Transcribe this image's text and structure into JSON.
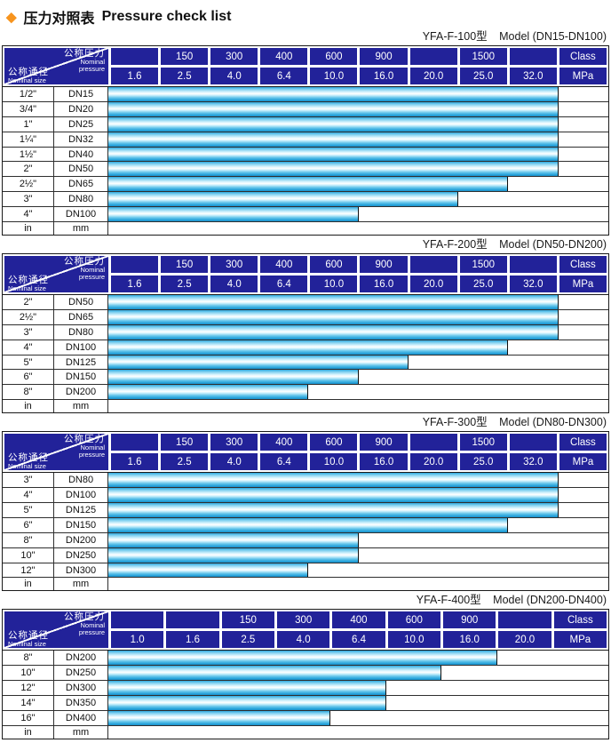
{
  "title": {
    "zh": "压力对照表",
    "en": "Pressure check list"
  },
  "corner": {
    "pressure_zh": "公称压力",
    "pressure_en_1": "Nominal",
    "pressure_en_2": "pressure",
    "size_zh": "公称通径",
    "size_en": "Nominal size"
  },
  "colors": {
    "header_navy": "#222299",
    "bar_cyan": "#29abe2",
    "accent_orange": "#f7941e",
    "border_dark": "#1a1a1a"
  },
  "tables": [
    {
      "model": "YFA-F-100型",
      "range": "Model (DN15-DN100)",
      "class_labels": [
        "",
        "150",
        "300",
        "400",
        "600",
        "900",
        "",
        "1500",
        "",
        "Class"
      ],
      "mpa_labels": [
        "1.6",
        "2.5",
        "4.0",
        "6.4",
        "10.0",
        "16.0",
        "20.0",
        "25.0",
        "32.0",
        "MPa"
      ],
      "rows": [
        {
          "size": "1/2\"",
          "dn": "DN15",
          "bar_cols": 9,
          "max_mpa": "32.0"
        },
        {
          "size": "3/4\"",
          "dn": "DN20",
          "bar_cols": 9,
          "max_mpa": "32.0"
        },
        {
          "size": "1\"",
          "dn": "DN25",
          "bar_cols": 9,
          "max_mpa": "32.0"
        },
        {
          "size": "1¼\"",
          "dn": "DN32",
          "bar_cols": 9,
          "max_mpa": "32.0"
        },
        {
          "size": "1½\"",
          "dn": "DN40",
          "bar_cols": 9,
          "max_mpa": "32.0"
        },
        {
          "size": "2\"",
          "dn": "DN50",
          "bar_cols": 9,
          "max_mpa": "32.0"
        },
        {
          "size": "2½\"",
          "dn": "DN65",
          "bar_cols": 8,
          "max_mpa": "25.0"
        },
        {
          "size": "3\"",
          "dn": "DN80",
          "bar_cols": 7,
          "max_mpa": "20.0"
        },
        {
          "size": "4\"",
          "dn": "DN100",
          "bar_cols": 5,
          "max_mpa": "10.0"
        }
      ],
      "unit_row": {
        "size": "in",
        "dn": "mm"
      }
    },
    {
      "model": "YFA-F-200型",
      "range": "Model (DN50-DN200)",
      "class_labels": [
        "",
        "150",
        "300",
        "400",
        "600",
        "900",
        "",
        "1500",
        "",
        "Class"
      ],
      "mpa_labels": [
        "1.6",
        "2.5",
        "4.0",
        "6.4",
        "10.0",
        "16.0",
        "20.0",
        "25.0",
        "32.0",
        "MPa"
      ],
      "rows": [
        {
          "size": "2\"",
          "dn": "DN50",
          "bar_cols": 9,
          "max_mpa": "32.0"
        },
        {
          "size": "2½\"",
          "dn": "DN65",
          "bar_cols": 9,
          "max_mpa": "32.0"
        },
        {
          "size": "3\"",
          "dn": "DN80",
          "bar_cols": 9,
          "max_mpa": "32.0"
        },
        {
          "size": "4\"",
          "dn": "DN100",
          "bar_cols": 8,
          "max_mpa": "25.0"
        },
        {
          "size": "5\"",
          "dn": "DN125",
          "bar_cols": 6,
          "max_mpa": "16.0"
        },
        {
          "size": "6\"",
          "dn": "DN150",
          "bar_cols": 5,
          "max_mpa": "10.0"
        },
        {
          "size": "8\"",
          "dn": "DN200",
          "bar_cols": 4,
          "max_mpa": "6.4"
        }
      ],
      "unit_row": {
        "size": "in",
        "dn": "mm"
      }
    },
    {
      "model": "YFA-F-300型",
      "range": "Model (DN80-DN300)",
      "class_labels": [
        "",
        "150",
        "300",
        "400",
        "600",
        "900",
        "",
        "1500",
        "",
        "Class"
      ],
      "mpa_labels": [
        "1.6",
        "2.5",
        "4.0",
        "6.4",
        "10.0",
        "16.0",
        "20.0",
        "25.0",
        "32.0",
        "MPa"
      ],
      "rows": [
        {
          "size": "3\"",
          "dn": "DN80",
          "bar_cols": 9,
          "max_mpa": "32.0"
        },
        {
          "size": "4\"",
          "dn": "DN100",
          "bar_cols": 9,
          "max_mpa": "32.0"
        },
        {
          "size": "5\"",
          "dn": "DN125",
          "bar_cols": 9,
          "max_mpa": "32.0"
        },
        {
          "size": "6\"",
          "dn": "DN150",
          "bar_cols": 8,
          "max_mpa": "25.0"
        },
        {
          "size": "8\"",
          "dn": "DN200",
          "bar_cols": 5,
          "max_mpa": "10.0"
        },
        {
          "size": "10\"",
          "dn": "DN250",
          "bar_cols": 5,
          "max_mpa": "10.0"
        },
        {
          "size": "12\"",
          "dn": "DN300",
          "bar_cols": 4,
          "max_mpa": "6.4"
        }
      ],
      "unit_row": {
        "size": "in",
        "dn": "mm"
      }
    },
    {
      "model": "YFA-F-400型",
      "range": "Model (DN200-DN400)",
      "class_labels": [
        "",
        "",
        "150",
        "300",
        "400",
        "600",
        "900",
        "",
        "Class"
      ],
      "mpa_labels": [
        "1.0",
        "1.6",
        "2.5",
        "4.0",
        "6.4",
        "10.0",
        "16.0",
        "20.0",
        "MPa"
      ],
      "rows": [
        {
          "size": "8\"",
          "dn": "DN200",
          "bar_cols": 7,
          "max_mpa": "16.0"
        },
        {
          "size": "10\"",
          "dn": "DN250",
          "bar_cols": 6,
          "max_mpa": "10.0"
        },
        {
          "size": "12\"",
          "dn": "DN300",
          "bar_cols": 5,
          "max_mpa": "6.4"
        },
        {
          "size": "14\"",
          "dn": "DN350",
          "bar_cols": 5,
          "max_mpa": "6.4"
        },
        {
          "size": "16\"",
          "dn": "DN400",
          "bar_cols": 4,
          "max_mpa": "4.0"
        }
      ],
      "unit_row": {
        "size": "in",
        "dn": "mm"
      }
    }
  ]
}
